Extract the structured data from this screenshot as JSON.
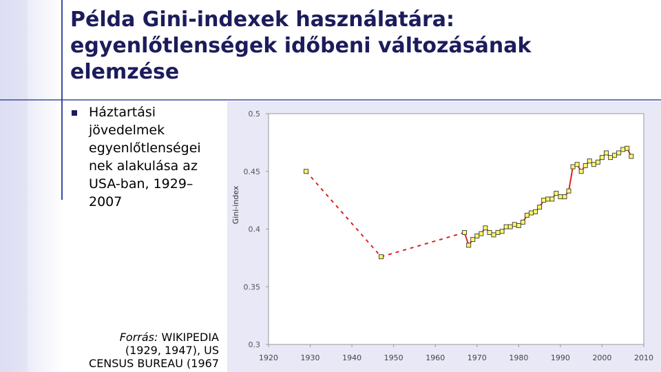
{
  "title_lines": [
    "Példa Gini-indexek használatára:",
    "egyenlőtlenségek időbeni változásának",
    "elemzése"
  ],
  "bullet_lines": [
    "Háztartási",
    "jövedelmek",
    "egyenlőtlenségei",
    "nek alakulása az",
    "USA-ban, 1929–",
    "2007"
  ],
  "source": {
    "label": "Forrás:",
    "lines": [
      "WIKIPEDIA",
      "(1929, 1947), US",
      "CENSUS BUREAU (1967"
    ]
  },
  "chart_data": {
    "type": "line",
    "ylabel": "Gini-index",
    "x": [
      1929,
      1947,
      1967,
      1968,
      1969,
      1970,
      1971,
      1972,
      1973,
      1974,
      1975,
      1976,
      1977,
      1978,
      1979,
      1980,
      1981,
      1982,
      1983,
      1984,
      1985,
      1986,
      1987,
      1988,
      1989,
      1990,
      1991,
      1992,
      1993,
      1994,
      1995,
      1996,
      1997,
      1998,
      1999,
      2000,
      2001,
      2002,
      2003,
      2004,
      2005,
      2006,
      2007
    ],
    "series": [
      {
        "color": "#e02020",
        "marker_color": "#ffff66",
        "values": [
          0.45,
          0.376,
          0.397,
          0.386,
          0.391,
          0.394,
          0.396,
          0.401,
          0.397,
          0.395,
          0.397,
          0.398,
          0.402,
          0.402,
          0.404,
          0.403,
          0.406,
          0.412,
          0.414,
          0.415,
          0.419,
          0.425,
          0.426,
          0.426,
          0.431,
          0.428,
          0.428,
          0.433,
          0.454,
          0.456,
          0.45,
          0.455,
          0.459,
          0.456,
          0.458,
          0.462,
          0.466,
          0.462,
          0.464,
          0.466,
          0.469,
          0.47,
          0.463
        ]
      }
    ],
    "xlim": [
      1920,
      2010
    ],
    "xticks": [
      1920,
      1930,
      1940,
      1950,
      1960,
      1970,
      1980,
      1990,
      2000,
      2010
    ],
    "ylim": [
      0.3,
      0.5
    ],
    "yticks": [
      0.3,
      0.35,
      0.4,
      0.45,
      0.5
    ],
    "grid": false
  }
}
